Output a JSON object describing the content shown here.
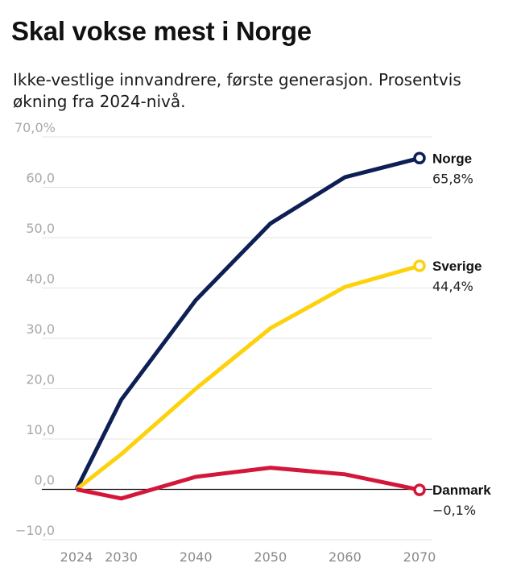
{
  "chart_data": {
    "type": "line",
    "title": "Skal vokse mest i Norge",
    "subtitle": "Ikke-vestlige innvandrere, første generasjon. Prosentvis økning fra 2024-nivå.",
    "xlabel": "",
    "ylabel": "",
    "x": [
      2024,
      2030,
      2040,
      2050,
      2060,
      2070
    ],
    "xticks": [
      "2024",
      "2030",
      "2040",
      "2050",
      "2060",
      "2070"
    ],
    "ylim": [
      -10,
      70
    ],
    "yticks": [
      "70,0%",
      "60,0",
      "50,0",
      "40,0",
      "30,0",
      "20,0",
      "10,0",
      "0,0",
      "−10,0"
    ],
    "grid": true,
    "series": [
      {
        "name": "Norge",
        "color": "#0d1f55",
        "values": [
          0,
          17.8,
          37.6,
          52.8,
          62.0,
          65.8
        ],
        "end_label": "65,8%"
      },
      {
        "name": "Sverige",
        "color": "#fdd20c",
        "values": [
          0,
          7.0,
          20.0,
          32.0,
          40.2,
          44.4
        ],
        "end_label": "44,4%"
      },
      {
        "name": "Danmark",
        "color": "#d3173a",
        "values": [
          0,
          -1.8,
          2.5,
          4.3,
          3.0,
          -0.1
        ],
        "end_label": "−0,1%"
      }
    ]
  }
}
